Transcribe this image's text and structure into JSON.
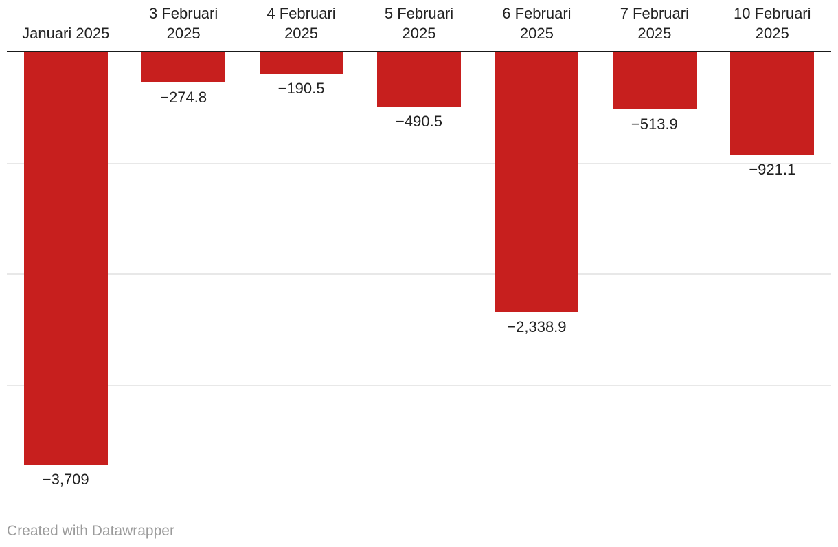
{
  "chart_data": {
    "type": "bar",
    "orientation": "column",
    "title": "",
    "categories": [
      "Januari 2025",
      "3 Februari 2025",
      "4 Februari 2025",
      "5 Februari 2025",
      "6 Februari 2025",
      "7 Februari 2025",
      "10 Februari 2025"
    ],
    "category_label_lines": [
      [
        "Januari 2025"
      ],
      [
        "3 Februari",
        "2025"
      ],
      [
        "4 Februari",
        "2025"
      ],
      [
        "5 Februari",
        "2025"
      ],
      [
        "6 Februari",
        "2025"
      ],
      [
        "7 Februari",
        "2025"
      ],
      [
        "10 Februari",
        "2025"
      ]
    ],
    "values": [
      -3709,
      -274.8,
      -190.5,
      -490.5,
      -2338.9,
      -513.9,
      -921.1
    ],
    "value_labels": [
      "−3,709",
      "−274.8",
      "−190.5",
      "−490.5",
      "−2,338.9",
      "−513.9",
      "−921.1"
    ],
    "xlabel": "",
    "ylabel": "",
    "ylim": [
      -3750,
      0
    ],
    "gridline_values": [
      -1000,
      -2000,
      -3000
    ],
    "grid": true,
    "legend": "none",
    "series": [
      {
        "name": "value",
        "values": [
          -3709,
          -274.8,
          -190.5,
          -490.5,
          -2338.9,
          -513.9,
          -921.1
        ]
      }
    ]
  },
  "colors": {
    "bar": "#c71f1e",
    "baseline": "#1a1a1a",
    "gridline": "#e8e8e8",
    "label": "#222222",
    "credit": "#9b9b9b",
    "background": "#ffffff"
  },
  "footer": {
    "credit": "Created with Datawrapper"
  }
}
